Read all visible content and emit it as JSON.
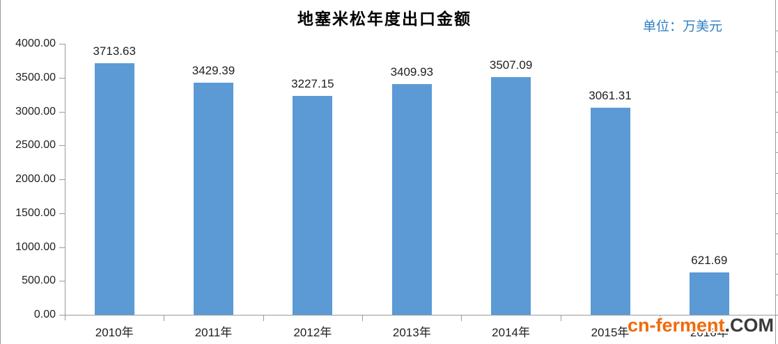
{
  "header": {
    "title": "地塞米松年度出口金额",
    "unit_label": "单位：万美元"
  },
  "chart_data": {
    "type": "bar",
    "title": "地塞米松年度出口金额",
    "unit_label": "单位：万美元",
    "categories": [
      "2010年",
      "2011年",
      "2012年",
      "2013年",
      "2014年",
      "2015年",
      "2016年"
    ],
    "values": [
      3713.63,
      3429.39,
      3227.15,
      3409.93,
      3507.09,
      3061.31,
      621.69
    ],
    "data_labels": [
      "3713.63",
      "3429.39",
      "3227.15",
      "3409.93",
      "3507.09",
      "3061.31",
      "621.69"
    ],
    "ylim": [
      0,
      4000
    ],
    "ytick_step": 500,
    "ytick_labels": [
      "0.00",
      "500.00",
      "1000.00",
      "1500.00",
      "2000.00",
      "2500.00",
      "3000.00",
      "3500.00",
      "4000.00"
    ],
    "grid": false,
    "legend": false,
    "bar_color": "#5B9AD5",
    "axis_color": "#9B9B9B",
    "label_color": "#1F1F1F",
    "unit_color": "#2E80C4"
  },
  "watermark": {
    "site": "cn-ferment",
    "tld": ".COM",
    "site_color": "#F06A0A",
    "tld_color": "#3A3A3A"
  }
}
